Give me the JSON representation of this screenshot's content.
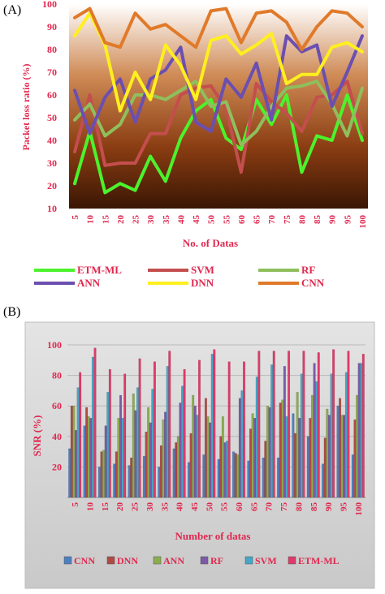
{
  "panel_a_label": "(A)",
  "panel_b_label": "(B)",
  "chart_data": [
    {
      "type": "line",
      "panel": "(A)",
      "ylabel": "Packet loss ratio (%)",
      "xlabel": "No. of Datas",
      "ylim": [
        10,
        100
      ],
      "yticks": [
        10,
        20,
        30,
        40,
        50,
        60,
        70,
        80,
        90,
        100
      ],
      "x": [
        5,
        10,
        15,
        20,
        25,
        30,
        35,
        40,
        45,
        50,
        55,
        60,
        65,
        70,
        75,
        80,
        85,
        90,
        95,
        100
      ],
      "legend_position": "bottom",
      "grid": false,
      "series": [
        {
          "name": "ETM-ML",
          "color": "#4cf22c",
          "values": [
            21,
            44,
            17,
            21,
            18,
            33,
            22,
            41,
            53,
            58,
            41,
            36,
            58,
            47,
            60,
            26,
            42,
            40,
            60,
            40
          ]
        },
        {
          "name": "SVM",
          "color": "#c44e4e",
          "values": [
            35,
            60,
            29,
            30,
            30,
            43,
            43,
            60,
            63,
            64,
            54,
            26,
            65,
            57,
            52,
            44,
            59,
            60,
            66,
            43
          ]
        },
        {
          "name": "RF",
          "color": "#8fbf5d",
          "values": [
            49,
            56,
            42,
            47,
            60,
            60,
            58,
            62,
            66,
            55,
            57,
            38,
            44,
            55,
            63,
            64,
            66,
            56,
            42,
            63
          ]
        },
        {
          "name": "ANN",
          "color": "#6b4fb0",
          "values": [
            62,
            43,
            59,
            67,
            48,
            67,
            71,
            81,
            48,
            44,
            67,
            59,
            74,
            49,
            86,
            79,
            82,
            55,
            70,
            86
          ]
        },
        {
          "name": "DNN",
          "color": "#ffef1f",
          "values": [
            86,
            96,
            82,
            53,
            70,
            58,
            82,
            73,
            58,
            84,
            86,
            78,
            82,
            87,
            65,
            69,
            69,
            81,
            83,
            79
          ]
        },
        {
          "name": "CNN",
          "color": "#e07a2a",
          "values": [
            94,
            98,
            83,
            81,
            96,
            89,
            91,
            86,
            81,
            97,
            98,
            83,
            96,
            97,
            92,
            80,
            90,
            97,
            96,
            90
          ]
        }
      ]
    },
    {
      "type": "bar",
      "panel": "(B)",
      "ylabel": "SNR (%)",
      "xlabel": "Number of datas",
      "ylim": [
        0,
        100
      ],
      "yticks": [
        20,
        40,
        60,
        80,
        100
      ],
      "categories": [
        "5",
        "10",
        "15",
        "20",
        "25",
        "30",
        "35",
        "40",
        "45",
        "50",
        "55",
        "60",
        "65",
        "70",
        "75",
        "80",
        "85",
        "90",
        "95",
        "100"
      ],
      "legend_position": "bottom",
      "grid": true,
      "series": [
        {
          "name": "CNN",
          "color": "#4d7fc1",
          "values": [
            32,
            47,
            20,
            22,
            21,
            27,
            20,
            32,
            23,
            28,
            25,
            30,
            24,
            26,
            26,
            55,
            40,
            22,
            60,
            28
          ]
        },
        {
          "name": "DNN",
          "color": "#b14a45",
          "values": [
            60,
            59,
            30,
            30,
            26,
            43,
            34,
            36,
            42,
            65,
            40,
            29,
            45,
            37,
            62,
            42,
            52,
            39,
            65,
            51
          ]
        },
        {
          "name": "ANN",
          "color": "#8bad4f",
          "values": [
            60,
            53,
            31,
            52,
            68,
            59,
            51,
            40,
            67,
            53,
            53,
            28,
            55,
            60,
            64,
            69,
            67,
            58,
            54,
            67
          ]
        },
        {
          "name": "RF",
          "color": "#7c5aa8",
          "values": [
            44,
            52,
            47,
            67,
            57,
            49,
            56,
            62,
            60,
            49,
            36,
            65,
            52,
            59,
            86,
            52,
            88,
            54,
            54,
            88
          ]
        },
        {
          "name": "SVM",
          "color": "#45a7c6",
          "values": [
            72,
            92,
            69,
            52,
            72,
            71,
            86,
            73,
            54,
            94,
            37,
            70,
            79,
            87,
            53,
            81,
            76,
            81,
            82,
            88
          ]
        },
        {
          "name": "ETM-ML",
          "color": "#e03a6a",
          "values": [
            82,
            98,
            84,
            81,
            91,
            89,
            96,
            84,
            90,
            97,
            89,
            89,
            96,
            96,
            96,
            96,
            95,
            97,
            96,
            94
          ]
        }
      ]
    }
  ]
}
